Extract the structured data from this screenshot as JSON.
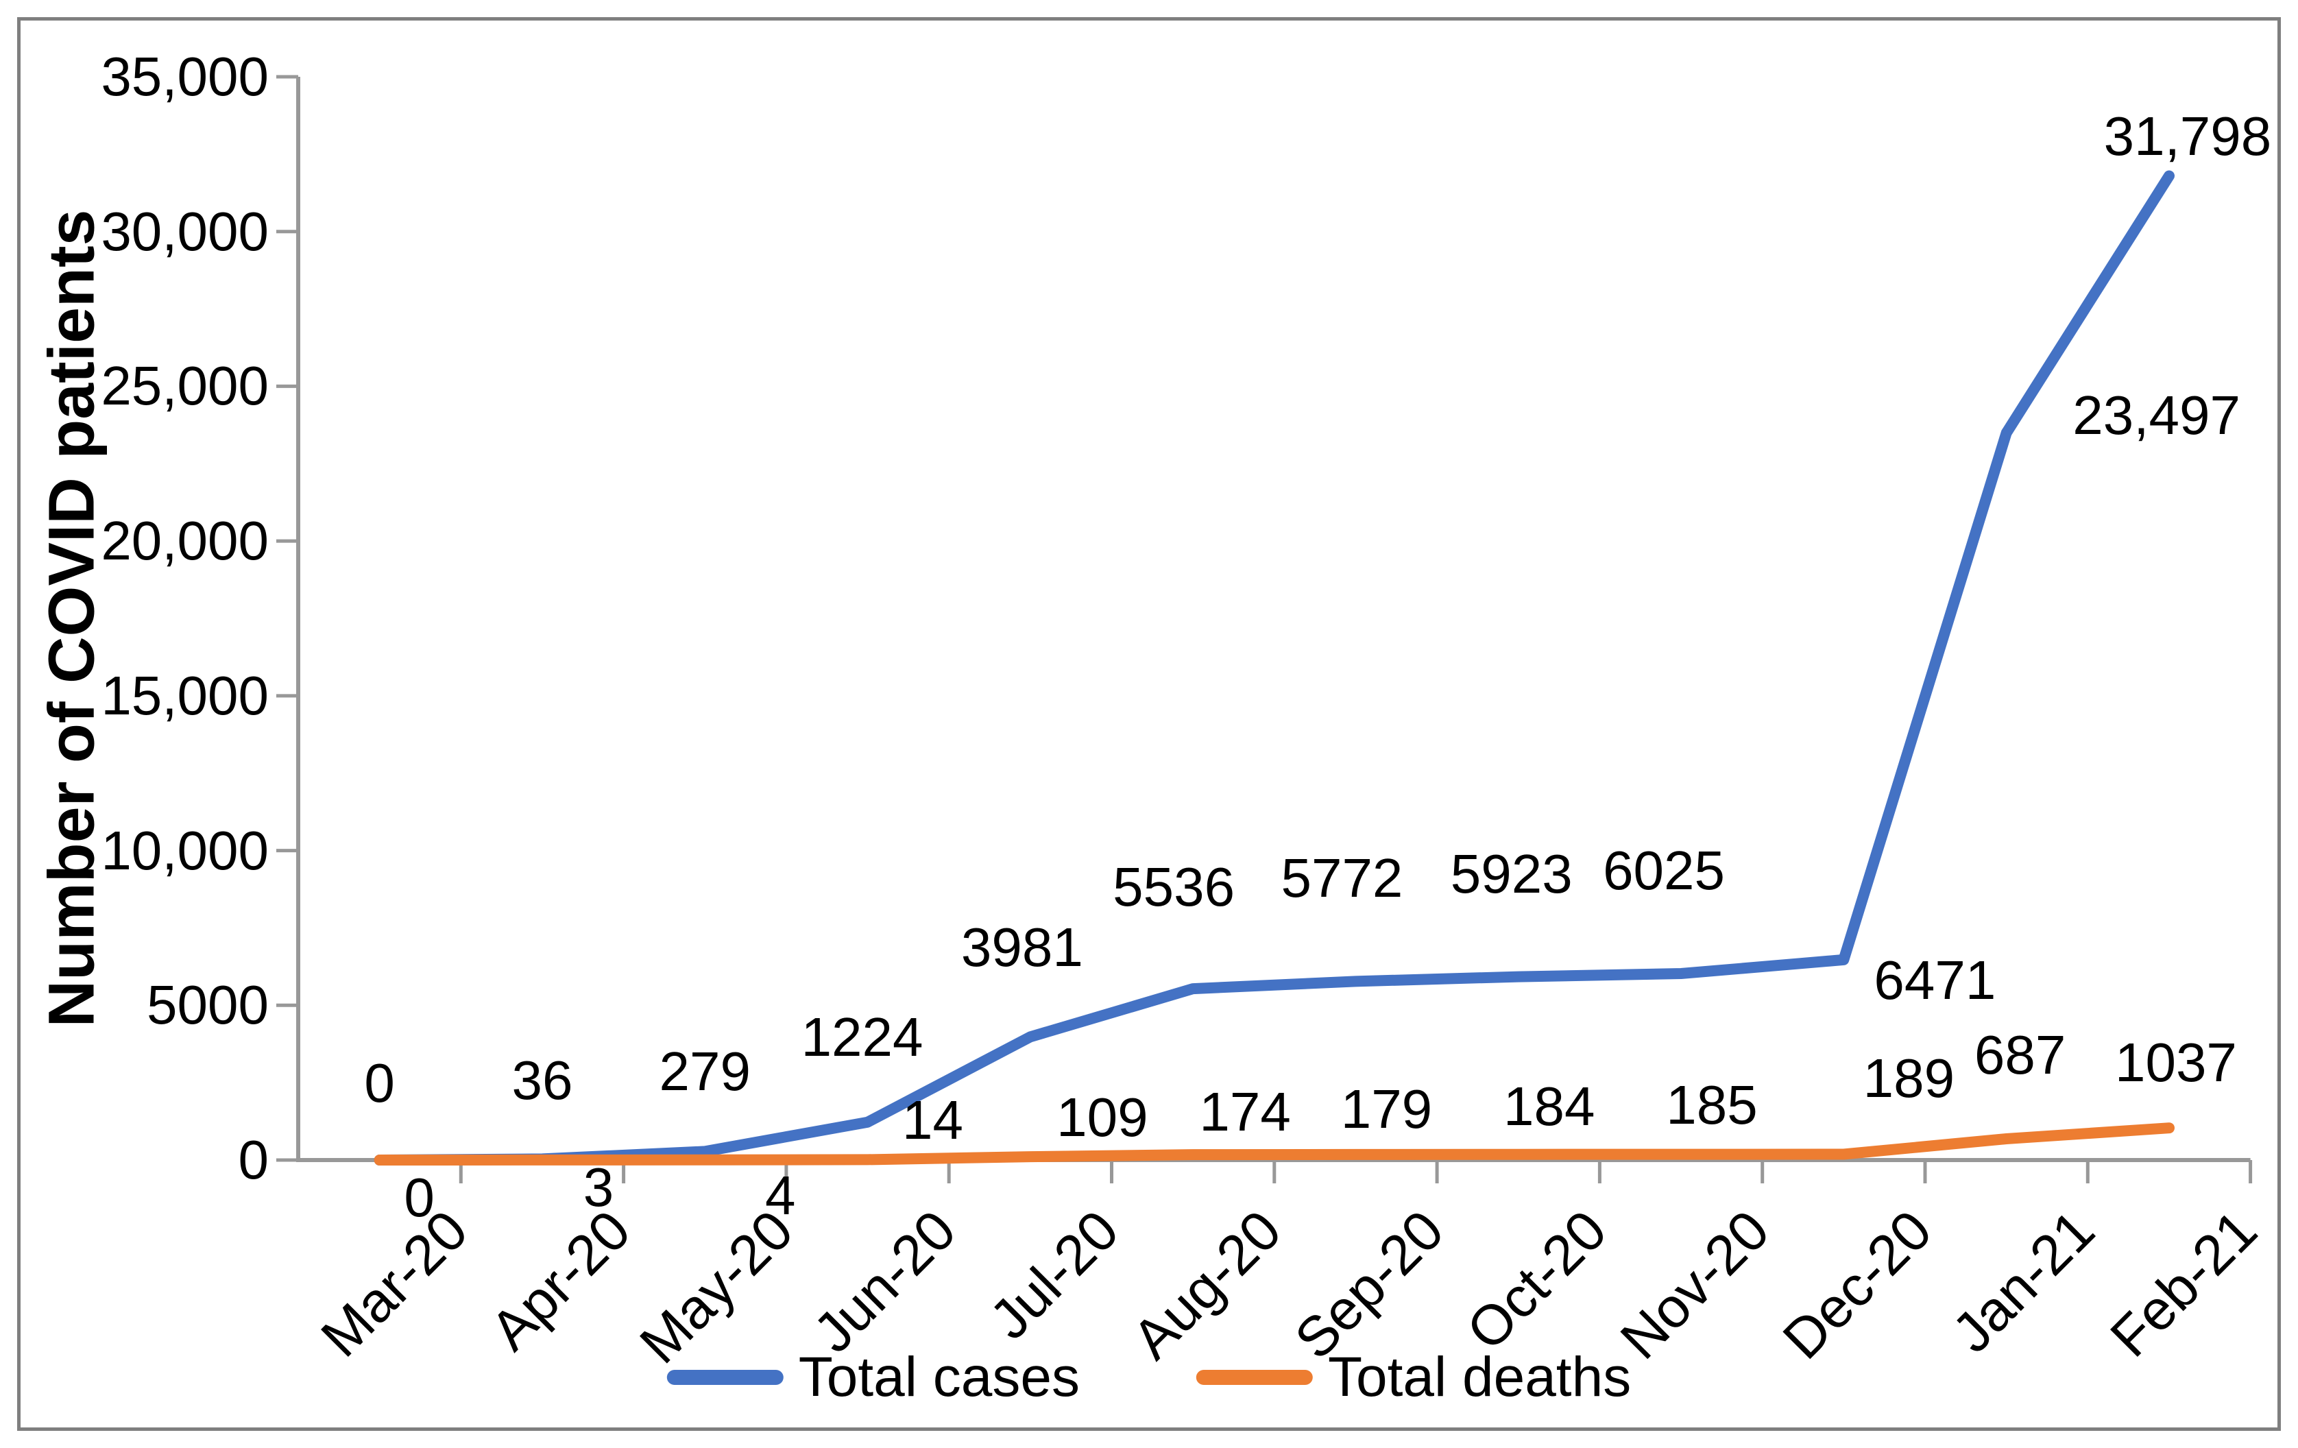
{
  "chart_data": {
    "type": "line",
    "title": "",
    "xlabel": "",
    "ylabel": "Number of COVID patients",
    "categories": [
      "Mar-20",
      "Apr-20",
      "May-20",
      "Jun-20",
      "Jul-20",
      "Aug-20",
      "Sep-20",
      "Oct-20",
      "Nov-20",
      "Dec-20",
      "Jan-21",
      "Feb-21"
    ],
    "series": [
      {
        "name": "Total cases",
        "color": "#4472C4",
        "values": [
          0,
          36,
          279,
          1224,
          3981,
          5536,
          5772,
          5923,
          6025,
          6471,
          23497,
          31798
        ],
        "point_labels": [
          "0",
          "36",
          "279",
          "1224",
          "3981",
          "5536",
          "5772",
          "5923",
          "6025",
          "6471",
          "23,497",
          "31,798"
        ]
      },
      {
        "name": "Total deaths",
        "color": "#ED7D31",
        "values": [
          0,
          3,
          4,
          14,
          109,
          174,
          179,
          184,
          185,
          189,
          687,
          1037
        ],
        "point_labels": [
          "0",
          "3",
          "4",
          "14",
          "109",
          "174",
          "179",
          "184",
          "185",
          "189",
          "687",
          "1037"
        ]
      }
    ],
    "y_axis": {
      "min": 0,
      "max": 35000,
      "step": 5000,
      "tick_labels": [
        "0",
        "5000",
        "10,000",
        "15,000",
        "20,000",
        "25,000",
        "30,000",
        "35,000"
      ]
    },
    "legend_position": "bottom",
    "grid": false,
    "colors": {
      "axis": "#989898",
      "frame_border": "#7F7F7F",
      "text": "#000000",
      "background": "#FFFFFF"
    }
  }
}
